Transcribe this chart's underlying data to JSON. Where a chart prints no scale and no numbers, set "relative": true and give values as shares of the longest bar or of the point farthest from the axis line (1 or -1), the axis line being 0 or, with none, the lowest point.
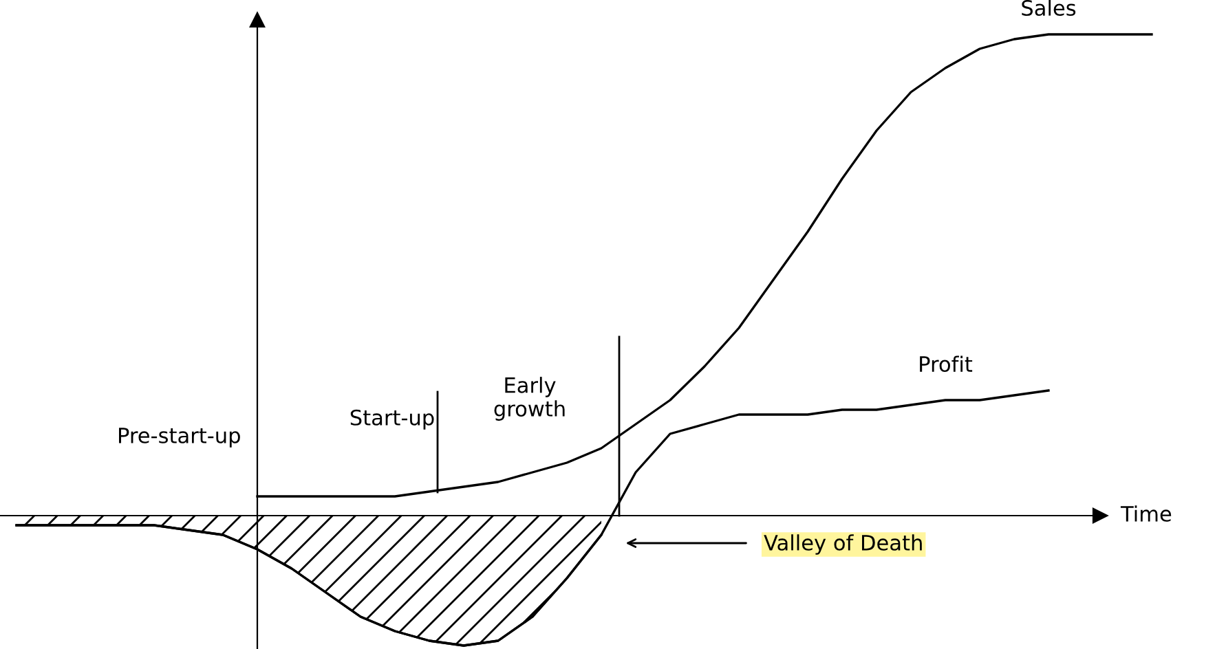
{
  "chart_data": {
    "type": "line",
    "relative": true,
    "xlabel": "Time",
    "legend": false,
    "marker": "none",
    "line_style": "solid",
    "categories": [
      null,
      null,
      null,
      null,
      null,
      null,
      null,
      null,
      null,
      null,
      null,
      null,
      null,
      null,
      null,
      null,
      null,
      null,
      null,
      null,
      null,
      null,
      null,
      null,
      null,
      null,
      null,
      null,
      null,
      null,
      null,
      null,
      null,
      null
    ],
    "series": [
      {
        "name": "Sales",
        "color": "#000000",
        "values": [
          null,
          null,
          null,
          null,
          null,
          null,
          null,
          0.04,
          0.04,
          0.04,
          0.04,
          0.04,
          0.05,
          0.06,
          0.07,
          0.09,
          0.11,
          0.14,
          0.19,
          0.24,
          0.31,
          0.39,
          0.49,
          0.59,
          0.7,
          0.8,
          0.88,
          0.93,
          0.97,
          0.99,
          1.0,
          1.0,
          1.0,
          1.0
        ]
      },
      {
        "type": "area",
        "color": "#000000",
        "values": [
          -0.02,
          -0.02,
          -0.02,
          -0.02,
          -0.02,
          -0.03,
          -0.04,
          -0.07,
          -0.11,
          -0.16,
          -0.21,
          -0.24,
          -0.26,
          -0.27,
          -0.26,
          -0.21,
          -0.13,
          -0.04,
          null,
          null,
          null,
          null,
          null,
          null,
          null,
          null,
          null,
          null,
          null,
          null,
          null,
          null,
          null,
          null
        ]
      },
      {
        "name": "Profit",
        "color": "#000000",
        "values": [
          -0.02,
          -0.02,
          -0.02,
          -0.02,
          -0.02,
          -0.03,
          -0.04,
          -0.07,
          -0.11,
          -0.16,
          -0.21,
          -0.24,
          -0.26,
          -0.27,
          -0.26,
          -0.21,
          -0.13,
          -0.04,
          0.09,
          0.17,
          0.19,
          0.21,
          0.21,
          0.21,
          0.22,
          0.22,
          0.23,
          0.24,
          0.24,
          0.25,
          0.26,
          null,
          null,
          null
        ]
      }
    ],
    "annotations": [
      "Pre-start-up",
      "Start-up",
      "Early\ngrowth",
      "Valley of Death"
    ]
  }
}
